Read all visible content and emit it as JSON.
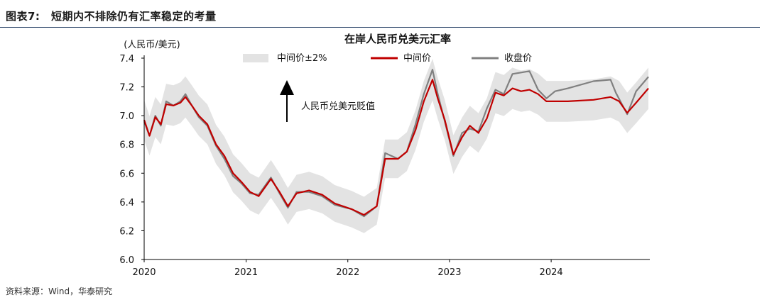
{
  "header": {
    "figure_label": "图表7:",
    "figure_title": "短期内不排除仍有汇率稳定的考量"
  },
  "source": "资料来源：Wind，华泰研究",
  "colors": {
    "band": "#e3e3e3",
    "mid": "#c00000",
    "close": "#808080",
    "axis": "#000000",
    "header_rule": "#1f3a5f"
  },
  "chart_data": {
    "type": "line",
    "title": "在岸人民币兑美元汇率",
    "ylabel": "(人民币/美元)",
    "ylim": [
      6.0,
      7.4
    ],
    "yticks": [
      "6.0",
      "6.2",
      "6.4",
      "6.6",
      "6.8",
      "7.0",
      "7.2",
      "7.4"
    ],
    "xlim": [
      "2020-01-01",
      "2024-12-15"
    ],
    "xticks": [
      "2020",
      "2021",
      "2022",
      "2023",
      "2024"
    ],
    "legend": {
      "band": "中间价±2%",
      "mid": "中间价",
      "close": "收盘价",
      "position": "top"
    },
    "annotation": "人民币兑美元贬值",
    "series": [
      {
        "name": "中间价",
        "points": [
          [
            "2020-01-01",
            6.97
          ],
          [
            "2020-01-20",
            6.86
          ],
          [
            "2020-02-10",
            6.99
          ],
          [
            "2020-03-01",
            6.94
          ],
          [
            "2020-03-20",
            7.08
          ],
          [
            "2020-04-15",
            7.07
          ],
          [
            "2020-05-10",
            7.09
          ],
          [
            "2020-05-28",
            7.13
          ],
          [
            "2020-06-20",
            7.07
          ],
          [
            "2020-07-15",
            7.0
          ],
          [
            "2020-08-15",
            6.94
          ],
          [
            "2020-09-15",
            6.8
          ],
          [
            "2020-10-15",
            6.72
          ],
          [
            "2020-11-15",
            6.6
          ],
          [
            "2020-12-15",
            6.54
          ],
          [
            "2021-01-15",
            6.47
          ],
          [
            "2021-02-15",
            6.44
          ],
          [
            "2021-03-31",
            6.56
          ],
          [
            "2021-05-01",
            6.47
          ],
          [
            "2021-05-31",
            6.37
          ],
          [
            "2021-07-01",
            6.46
          ],
          [
            "2021-08-15",
            6.48
          ],
          [
            "2021-10-01",
            6.45
          ],
          [
            "2021-11-15",
            6.39
          ],
          [
            "2022-01-15",
            6.35
          ],
          [
            "2022-02-28",
            6.31
          ],
          [
            "2022-04-15",
            6.37
          ],
          [
            "2022-05-15",
            6.7
          ],
          [
            "2022-06-30",
            6.7
          ],
          [
            "2022-08-01",
            6.75
          ],
          [
            "2022-09-01",
            6.9
          ],
          [
            "2022-10-01",
            7.1
          ],
          [
            "2022-11-01",
            7.25
          ],
          [
            "2022-11-20",
            7.12
          ],
          [
            "2022-12-15",
            6.97
          ],
          [
            "2023-01-15",
            6.73
          ],
          [
            "2023-02-15",
            6.85
          ],
          [
            "2023-03-15",
            6.93
          ],
          [
            "2023-04-15",
            6.88
          ],
          [
            "2023-05-15",
            6.98
          ],
          [
            "2023-06-15",
            7.16
          ],
          [
            "2023-07-15",
            7.14
          ],
          [
            "2023-08-15",
            7.19
          ],
          [
            "2023-09-15",
            7.17
          ],
          [
            "2023-10-15",
            7.18
          ],
          [
            "2023-11-15",
            7.15
          ],
          [
            "2023-12-15",
            7.1
          ],
          [
            "2024-03-01",
            7.1
          ],
          [
            "2024-06-01",
            7.11
          ],
          [
            "2024-08-01",
            7.13
          ],
          [
            "2024-09-01",
            7.1
          ],
          [
            "2024-09-30",
            7.02
          ],
          [
            "2024-11-01",
            7.09
          ],
          [
            "2024-12-15",
            7.19
          ]
        ]
      },
      {
        "name": "收盘价",
        "points": [
          [
            "2020-01-01",
            6.96
          ],
          [
            "2020-01-20",
            6.86
          ],
          [
            "2020-02-10",
            7.0
          ],
          [
            "2020-03-01",
            6.93
          ],
          [
            "2020-03-20",
            7.1
          ],
          [
            "2020-04-15",
            7.07
          ],
          [
            "2020-05-10",
            7.1
          ],
          [
            "2020-05-28",
            7.15
          ],
          [
            "2020-06-20",
            7.07
          ],
          [
            "2020-07-15",
            6.99
          ],
          [
            "2020-08-15",
            6.93
          ],
          [
            "2020-09-15",
            6.79
          ],
          [
            "2020-10-15",
            6.7
          ],
          [
            "2020-11-15",
            6.58
          ],
          [
            "2020-12-15",
            6.53
          ],
          [
            "2021-01-15",
            6.46
          ],
          [
            "2021-02-15",
            6.45
          ],
          [
            "2021-03-31",
            6.57
          ],
          [
            "2021-05-01",
            6.46
          ],
          [
            "2021-05-31",
            6.36
          ],
          [
            "2021-07-01",
            6.47
          ],
          [
            "2021-08-15",
            6.47
          ],
          [
            "2021-10-01",
            6.44
          ],
          [
            "2021-11-15",
            6.38
          ],
          [
            "2022-01-15",
            6.35
          ],
          [
            "2022-02-28",
            6.3
          ],
          [
            "2022-04-15",
            6.37
          ],
          [
            "2022-05-15",
            6.74
          ],
          [
            "2022-06-30",
            6.7
          ],
          [
            "2022-08-01",
            6.75
          ],
          [
            "2022-09-01",
            6.94
          ],
          [
            "2022-10-01",
            7.15
          ],
          [
            "2022-11-01",
            7.32
          ],
          [
            "2022-11-20",
            7.15
          ],
          [
            "2022-12-15",
            6.96
          ],
          [
            "2023-01-15",
            6.72
          ],
          [
            "2023-02-15",
            6.88
          ],
          [
            "2023-03-15",
            6.91
          ],
          [
            "2023-04-15",
            6.89
          ],
          [
            "2023-05-15",
            7.05
          ],
          [
            "2023-06-15",
            7.18
          ],
          [
            "2023-07-15",
            7.15
          ],
          [
            "2023-08-15",
            7.29
          ],
          [
            "2023-09-15",
            7.3
          ],
          [
            "2023-10-15",
            7.31
          ],
          [
            "2023-11-15",
            7.18
          ],
          [
            "2023-12-15",
            7.12
          ],
          [
            "2024-01-15",
            7.17
          ],
          [
            "2024-03-01",
            7.19
          ],
          [
            "2024-06-01",
            7.24
          ],
          [
            "2024-08-01",
            7.25
          ],
          [
            "2024-08-20",
            7.16
          ],
          [
            "2024-09-30",
            7.01
          ],
          [
            "2024-11-01",
            7.17
          ],
          [
            "2024-12-15",
            7.27
          ]
        ]
      }
    ],
    "band_pct": 2
  }
}
